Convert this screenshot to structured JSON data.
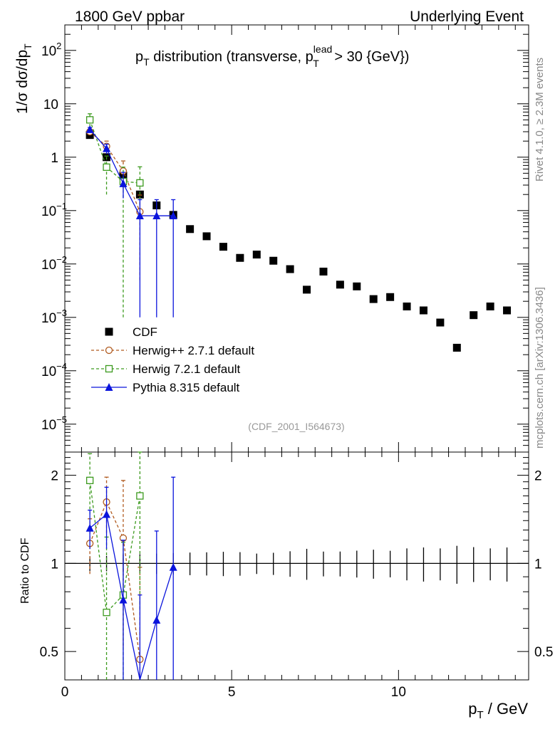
{
  "header": {
    "left": "1800 GeV ppbar",
    "right": "Underlying Event"
  },
  "side_labels": {
    "rivet": "Rivet 4.1.0, ≥ 2.3M events",
    "mcplots": "mcplots.cern.ch [arXiv:1306.3436]"
  },
  "chart_data": {
    "type": "scatter",
    "title_parts": {
      "base": "p",
      "sub": "T",
      "mid": " distribution (transverse, p",
      "sup_lead": "lead",
      "sub_T": "T",
      "end": " > 30 {GeV})"
    },
    "analysis_id": "(CDF_2001_I564673)",
    "xlabel": "p",
    "xlabel_sub": "T",
    "xlabel_unit": " / GeV",
    "ylabel_main": "1/σ  dσ/dp",
    "ylabel_main_sub": "T",
    "ylabel_ratio": "Ratio to CDF",
    "xlim": [
      0,
      13.9
    ],
    "ylim_main": [
      3e-06,
      300
    ],
    "ylim_ratio": [
      0.4,
      2.4
    ],
    "x_ticks": [
      0,
      5,
      10
    ],
    "x_tick_labels": [
      "0",
      "5",
      "10"
    ],
    "y_ticks_main": [
      {
        "value": 100,
        "base": "10",
        "exp": "2"
      },
      {
        "value": 10,
        "base": "10",
        "exp": ""
      },
      {
        "value": 1,
        "base": "1",
        "exp": ""
      },
      {
        "value": 0.1,
        "base": "10",
        "exp": "−1"
      },
      {
        "value": 0.01,
        "base": "10",
        "exp": "−2"
      },
      {
        "value": 0.001,
        "base": "10",
        "exp": "−3"
      },
      {
        "value": 0.0001,
        "base": "10",
        "exp": "−4"
      },
      {
        "value": 1e-05,
        "base": "10",
        "exp": "−5"
      }
    ],
    "y_ticks_ratio": [
      {
        "value": 0.5,
        "label": "0.5"
      },
      {
        "value": 1,
        "label": "1"
      },
      {
        "value": 2,
        "label": "2"
      }
    ],
    "series": [
      {
        "name": "CDF",
        "color": "#000000",
        "marker": "square-filled",
        "line": "none",
        "x": [
          0.75,
          1.25,
          1.75,
          2.25,
          2.75,
          3.25,
          3.75,
          4.25,
          4.75,
          5.25,
          5.75,
          6.25,
          6.75,
          7.25,
          7.75,
          8.25,
          8.75,
          9.25,
          9.75,
          10.25,
          10.75,
          11.25,
          11.75,
          12.25,
          12.75,
          13.25
        ],
        "y": [
          2.6,
          1.0,
          0.45,
          0.2,
          0.125,
          0.083,
          0.045,
          0.033,
          0.021,
          0.013,
          0.015,
          0.0115,
          0.008,
          0.0033,
          0.0072,
          0.0041,
          0.0038,
          0.0022,
          0.0024,
          0.0016,
          0.00135,
          0.0008,
          0.00027,
          0.0011,
          0.0016,
          0.00135
        ],
        "err": [
          0.15,
          0.06,
          0.03,
          0.015,
          0.01,
          0.007,
          0.004,
          0.003,
          0.002,
          0.0012,
          0.0012,
          0.001,
          0.0008,
          0.0004,
          0.0007,
          0.0004,
          0.0004,
          0.00025,
          0.00025,
          0.0002,
          0.00018,
          0.0001,
          4e-05,
          0.00015,
          0.0002,
          0.00018
        ]
      },
      {
        "name": "Herwig++ 2.7.1 default",
        "color": "#b05a1e",
        "marker": "circle-open",
        "line": "dashed",
        "x": [
          0.75,
          1.25,
          1.75,
          2.25
        ],
        "y": [
          3.0,
          1.6,
          0.55,
          0.095
        ],
        "err_lo": [
          0.3,
          0.3,
          0.3,
          0.09
        ],
        "err_hi": [
          0.3,
          0.4,
          0.3,
          0.1
        ],
        "ratio": [
          1.17,
          1.62,
          1.22,
          0.47
        ],
        "ratio_err": [
          0.25,
          0.35,
          0.7,
          0.5
        ]
      },
      {
        "name": "Herwig 7.2.1 default",
        "color": "#3c9a1e",
        "marker": "square-open",
        "line": "dashed",
        "x": [
          0.75,
          1.25,
          1.75,
          2.25
        ],
        "y": [
          5.0,
          0.65,
          0.35,
          0.33
        ],
        "err_lo": [
          1.3,
          0.45,
          0.349,
          0.2
        ],
        "err_hi": [
          1.5,
          0.4,
          0.3,
          0.33
        ],
        "ratio": [
          1.92,
          0.68,
          0.78,
          1.7
        ],
        "ratio_err": [
          0.45,
          0.55,
          0.4,
          1.0
        ]
      },
      {
        "name": "Pythia 8.315 default",
        "color": "#0a14dc",
        "marker": "triangle-filled",
        "line": "solid",
        "x": [
          0.75,
          1.25,
          1.75,
          2.25,
          2.75,
          3.25
        ],
        "y": [
          3.3,
          1.45,
          0.32,
          0.08,
          0.08,
          0.08
        ],
        "err_lo": [
          0.3,
          0.3,
          0.15,
          0.079,
          0.079,
          0.079
        ],
        "err_hi": [
          0.3,
          0.3,
          0.2,
          0.08,
          0.08,
          0.08
        ],
        "ratio": [
          1.32,
          1.47,
          0.75,
          0.38,
          0.64,
          0.97
        ],
        "ratio_err": [
          0.2,
          0.35,
          0.45,
          0.4,
          0.65,
          1.0
        ]
      }
    ]
  }
}
